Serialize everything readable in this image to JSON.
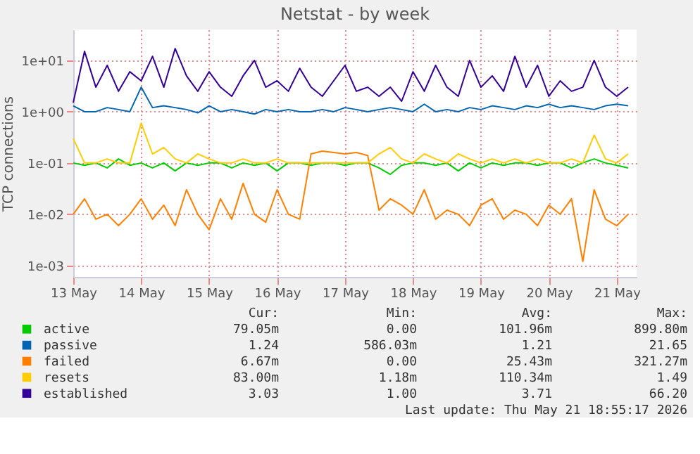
{
  "chart_data": {
    "type": "line",
    "title": "Netstat - by week",
    "ylabel": "TCP connections",
    "log": true,
    "grid": true,
    "legend": "bottom",
    "line_style": "solid",
    "marker": "none",
    "xlim": [
      "2026-05-13T00:00",
      "2026-05-21T07:00"
    ],
    "xticks": [
      {
        "value": "2026-05-13",
        "label": "13 May"
      },
      {
        "value": "2026-05-14",
        "label": "14 May"
      },
      {
        "value": "2026-05-15",
        "label": "15 May"
      },
      {
        "value": "2026-05-16",
        "label": "16 May"
      },
      {
        "value": "2026-05-17",
        "label": "17 May"
      },
      {
        "value": "2026-05-18",
        "label": "18 May"
      },
      {
        "value": "2026-05-19",
        "label": "19 May"
      },
      {
        "value": "2026-05-20",
        "label": "20 May"
      },
      {
        "value": "2026-05-21",
        "label": "21 May"
      }
    ],
    "ylim": [
      0.0006,
      40
    ],
    "yticks": [
      {
        "value": 0.001,
        "label": "1e-03"
      },
      {
        "value": 0.01,
        "label": "1e-02"
      },
      {
        "value": 0.1,
        "label": "1e-01"
      },
      {
        "value": 1,
        "label": "1e+00"
      },
      {
        "value": 10,
        "label": "1e+01"
      }
    ],
    "x": [
      "2026-05-13T00:00",
      "2026-05-13T04:00",
      "2026-05-13T08:00",
      "2026-05-13T12:00",
      "2026-05-13T16:00",
      "2026-05-13T20:00",
      "2026-05-14T00:00",
      "2026-05-14T04:00",
      "2026-05-14T08:00",
      "2026-05-14T12:00",
      "2026-05-14T16:00",
      "2026-05-14T20:00",
      "2026-05-15T00:00",
      "2026-05-15T04:00",
      "2026-05-15T08:00",
      "2026-05-15T12:00",
      "2026-05-15T16:00",
      "2026-05-15T20:00",
      "2026-05-16T00:00",
      "2026-05-16T04:00",
      "2026-05-16T08:00",
      "2026-05-16T12:00",
      "2026-05-16T16:00",
      "2026-05-16T20:00",
      "2026-05-17T00:00",
      "2026-05-17T04:00",
      "2026-05-17T08:00",
      "2026-05-17T12:00",
      "2026-05-17T16:00",
      "2026-05-17T20:00",
      "2026-05-18T00:00",
      "2026-05-18T04:00",
      "2026-05-18T08:00",
      "2026-05-18T12:00",
      "2026-05-18T16:00",
      "2026-05-18T20:00",
      "2026-05-19T00:00",
      "2026-05-19T04:00",
      "2026-05-19T08:00",
      "2026-05-19T12:00",
      "2026-05-19T16:00",
      "2026-05-19T20:00",
      "2026-05-20T00:00",
      "2026-05-20T04:00",
      "2026-05-20T08:00",
      "2026-05-20T12:00",
      "2026-05-20T16:00",
      "2026-05-20T20:00",
      "2026-05-21T00:00",
      "2026-05-21T04:00"
    ],
    "series": [
      {
        "name": "active",
        "color": "#00cc00",
        "values": [
          0.1,
          0.09,
          0.1,
          0.08,
          0.12,
          0.09,
          0.1,
          0.08,
          0.1,
          0.07,
          0.1,
          0.09,
          0.1,
          0.1,
          0.08,
          0.1,
          0.09,
          0.1,
          0.07,
          0.1,
          0.1,
          0.09,
          0.1,
          0.1,
          0.09,
          0.1,
          0.1,
          0.08,
          0.06,
          0.09,
          0.1,
          0.1,
          0.09,
          0.1,
          0.07,
          0.1,
          0.08,
          0.1,
          0.09,
          0.1,
          0.1,
          0.09,
          0.1,
          0.1,
          0.08,
          0.1,
          0.12,
          0.1,
          0.09,
          0.08
        ]
      },
      {
        "name": "passive",
        "color": "#0066b3",
        "values": [
          1.3,
          1.0,
          1.0,
          1.2,
          1.1,
          1.0,
          3.0,
          1.2,
          1.3,
          1.2,
          1.1,
          0.95,
          1.3,
          1.0,
          1.1,
          1.0,
          0.9,
          1.1,
          1.0,
          1.1,
          1.0,
          1.0,
          1.1,
          1.0,
          1.2,
          1.1,
          1.0,
          1.1,
          1.2,
          1.1,
          1.0,
          1.4,
          1.0,
          1.1,
          1.0,
          1.2,
          1.1,
          1.3,
          1.2,
          1.1,
          1.3,
          1.2,
          1.4,
          1.2,
          1.3,
          1.2,
          1.1,
          1.3,
          1.4,
          1.3
        ]
      },
      {
        "name": "failed",
        "color": "#ff8000",
        "values": [
          0.01,
          0.02,
          0.008,
          0.01,
          0.006,
          0.01,
          0.02,
          0.008,
          0.015,
          0.006,
          0.03,
          0.01,
          0.005,
          0.02,
          0.008,
          0.04,
          0.01,
          0.007,
          0.03,
          0.01,
          0.008,
          0.15,
          0.17,
          0.16,
          0.15,
          0.16,
          0.14,
          0.012,
          0.02,
          0.015,
          0.01,
          0.03,
          0.008,
          0.012,
          0.01,
          0.006,
          0.015,
          0.02,
          0.008,
          0.012,
          0.01,
          0.006,
          0.015,
          0.01,
          0.02,
          0.0012,
          0.03,
          0.008,
          0.006,
          0.01
        ]
      },
      {
        "name": "resets",
        "color": "#ffcc00",
        "values": [
          0.3,
          0.1,
          0.1,
          0.12,
          0.1,
          0.1,
          0.6,
          0.15,
          0.2,
          0.12,
          0.1,
          0.15,
          0.12,
          0.1,
          0.1,
          0.12,
          0.1,
          0.1,
          0.12,
          0.1,
          0.1,
          0.1,
          0.1,
          0.1,
          0.1,
          0.1,
          0.1,
          0.15,
          0.2,
          0.12,
          0.1,
          0.15,
          0.12,
          0.1,
          0.15,
          0.12,
          0.1,
          0.12,
          0.1,
          0.12,
          0.1,
          0.12,
          0.1,
          0.1,
          0.12,
          0.1,
          0.35,
          0.12,
          0.1,
          0.15
        ]
      },
      {
        "name": "established",
        "color": "#330099",
        "values": [
          1.5,
          15,
          3,
          8,
          2.5,
          6,
          4,
          12,
          3,
          17,
          5,
          2.5,
          6,
          3,
          2,
          5,
          10,
          3,
          4,
          2.5,
          7,
          3,
          2,
          4,
          8,
          2.5,
          3,
          2,
          3,
          1.6,
          6,
          2.5,
          8,
          3,
          2,
          10,
          3,
          5,
          2.5,
          12,
          3,
          8,
          2,
          4,
          2.5,
          3,
          10,
          3,
          2,
          3
        ]
      }
    ],
    "annotations": [
      "Cur:",
      "Min:",
      "Avg:",
      "Max:",
      "79.05m",
      "0.00",
      "101.96m",
      "899.80m",
      "1.24",
      "586.03m",
      "1.21",
      "21.65",
      "6.67m",
      "0.00",
      "25.43m",
      "321.27m",
      "83.00m",
      "1.18m",
      "110.34m",
      "1.49",
      "3.03",
      "1.00",
      "3.71",
      "66.20",
      "Last update: Thu May 21 18:55:17 2026"
    ]
  }
}
